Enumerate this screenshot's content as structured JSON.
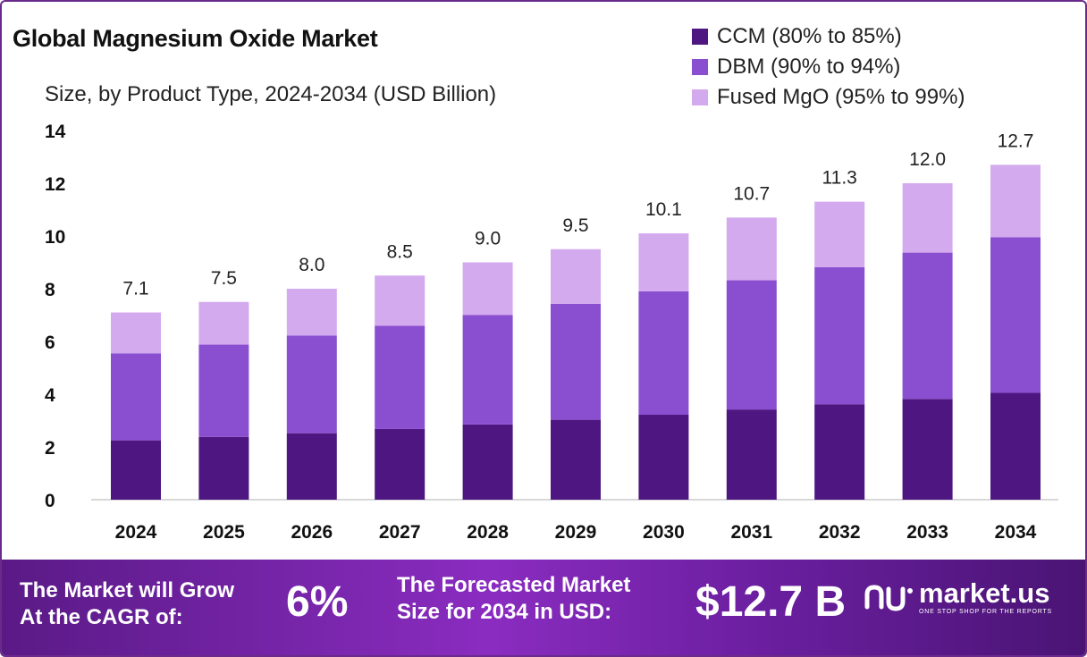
{
  "header": {
    "title": "Global Magnesium Oxide Market",
    "subtitle": "Size, by Product Type, 2024-2034 (USD Billion)"
  },
  "legend": [
    {
      "label": "CCM (80% to 85%)",
      "color": "#4d1680"
    },
    {
      "label": "DBM (90% to 94%)",
      "color": "#8a4fd0"
    },
    {
      "label": "Fused MgO (95% to 99%)",
      "color": "#d4aaee"
    }
  ],
  "chart_data": {
    "type": "bar",
    "stacked": true,
    "categories": [
      "2024",
      "2025",
      "2026",
      "2027",
      "2028",
      "2029",
      "2030",
      "2031",
      "2032",
      "2033",
      "2034"
    ],
    "series": [
      {
        "name": "CCM (80% to 85%)",
        "color": "#4d1680",
        "values": [
          2.25,
          2.38,
          2.52,
          2.68,
          2.85,
          3.03,
          3.22,
          3.42,
          3.62,
          3.82,
          4.05
        ]
      },
      {
        "name": "DBM (90% to 94%)",
        "color": "#8a4fd0",
        "values": [
          3.3,
          3.5,
          3.7,
          3.92,
          4.15,
          4.4,
          4.68,
          4.9,
          5.2,
          5.55,
          5.9
        ]
      },
      {
        "name": "Fused MgO (95% to 99%)",
        "color": "#d4aaee",
        "values": [
          1.55,
          1.62,
          1.78,
          1.9,
          2.0,
          2.07,
          2.2,
          2.38,
          2.48,
          2.63,
          2.75
        ]
      }
    ],
    "totals": [
      "7.1",
      "7.5",
      "8.0",
      "8.5",
      "9.0",
      "9.5",
      "10.1",
      "10.7",
      "11.3",
      "12.0",
      "12.7"
    ],
    "yticks": [
      "0",
      "2",
      "4",
      "6",
      "8",
      "10",
      "12",
      "14"
    ],
    "ylim": [
      0,
      14
    ],
    "grid": false,
    "legend_position": "top-right"
  },
  "footer": {
    "cagr_label_line1": "The Market will Grow",
    "cagr_label_line2": "At the CAGR of:",
    "cagr_value": "6%",
    "forecast_label_line1": "The Forecasted Market",
    "forecast_label_line2": "Size for 2034 in USD:",
    "forecast_value": "$12.7 B",
    "brand_name": "market.us",
    "brand_tagline": "ONE STOP SHOP FOR THE REPORTS"
  }
}
